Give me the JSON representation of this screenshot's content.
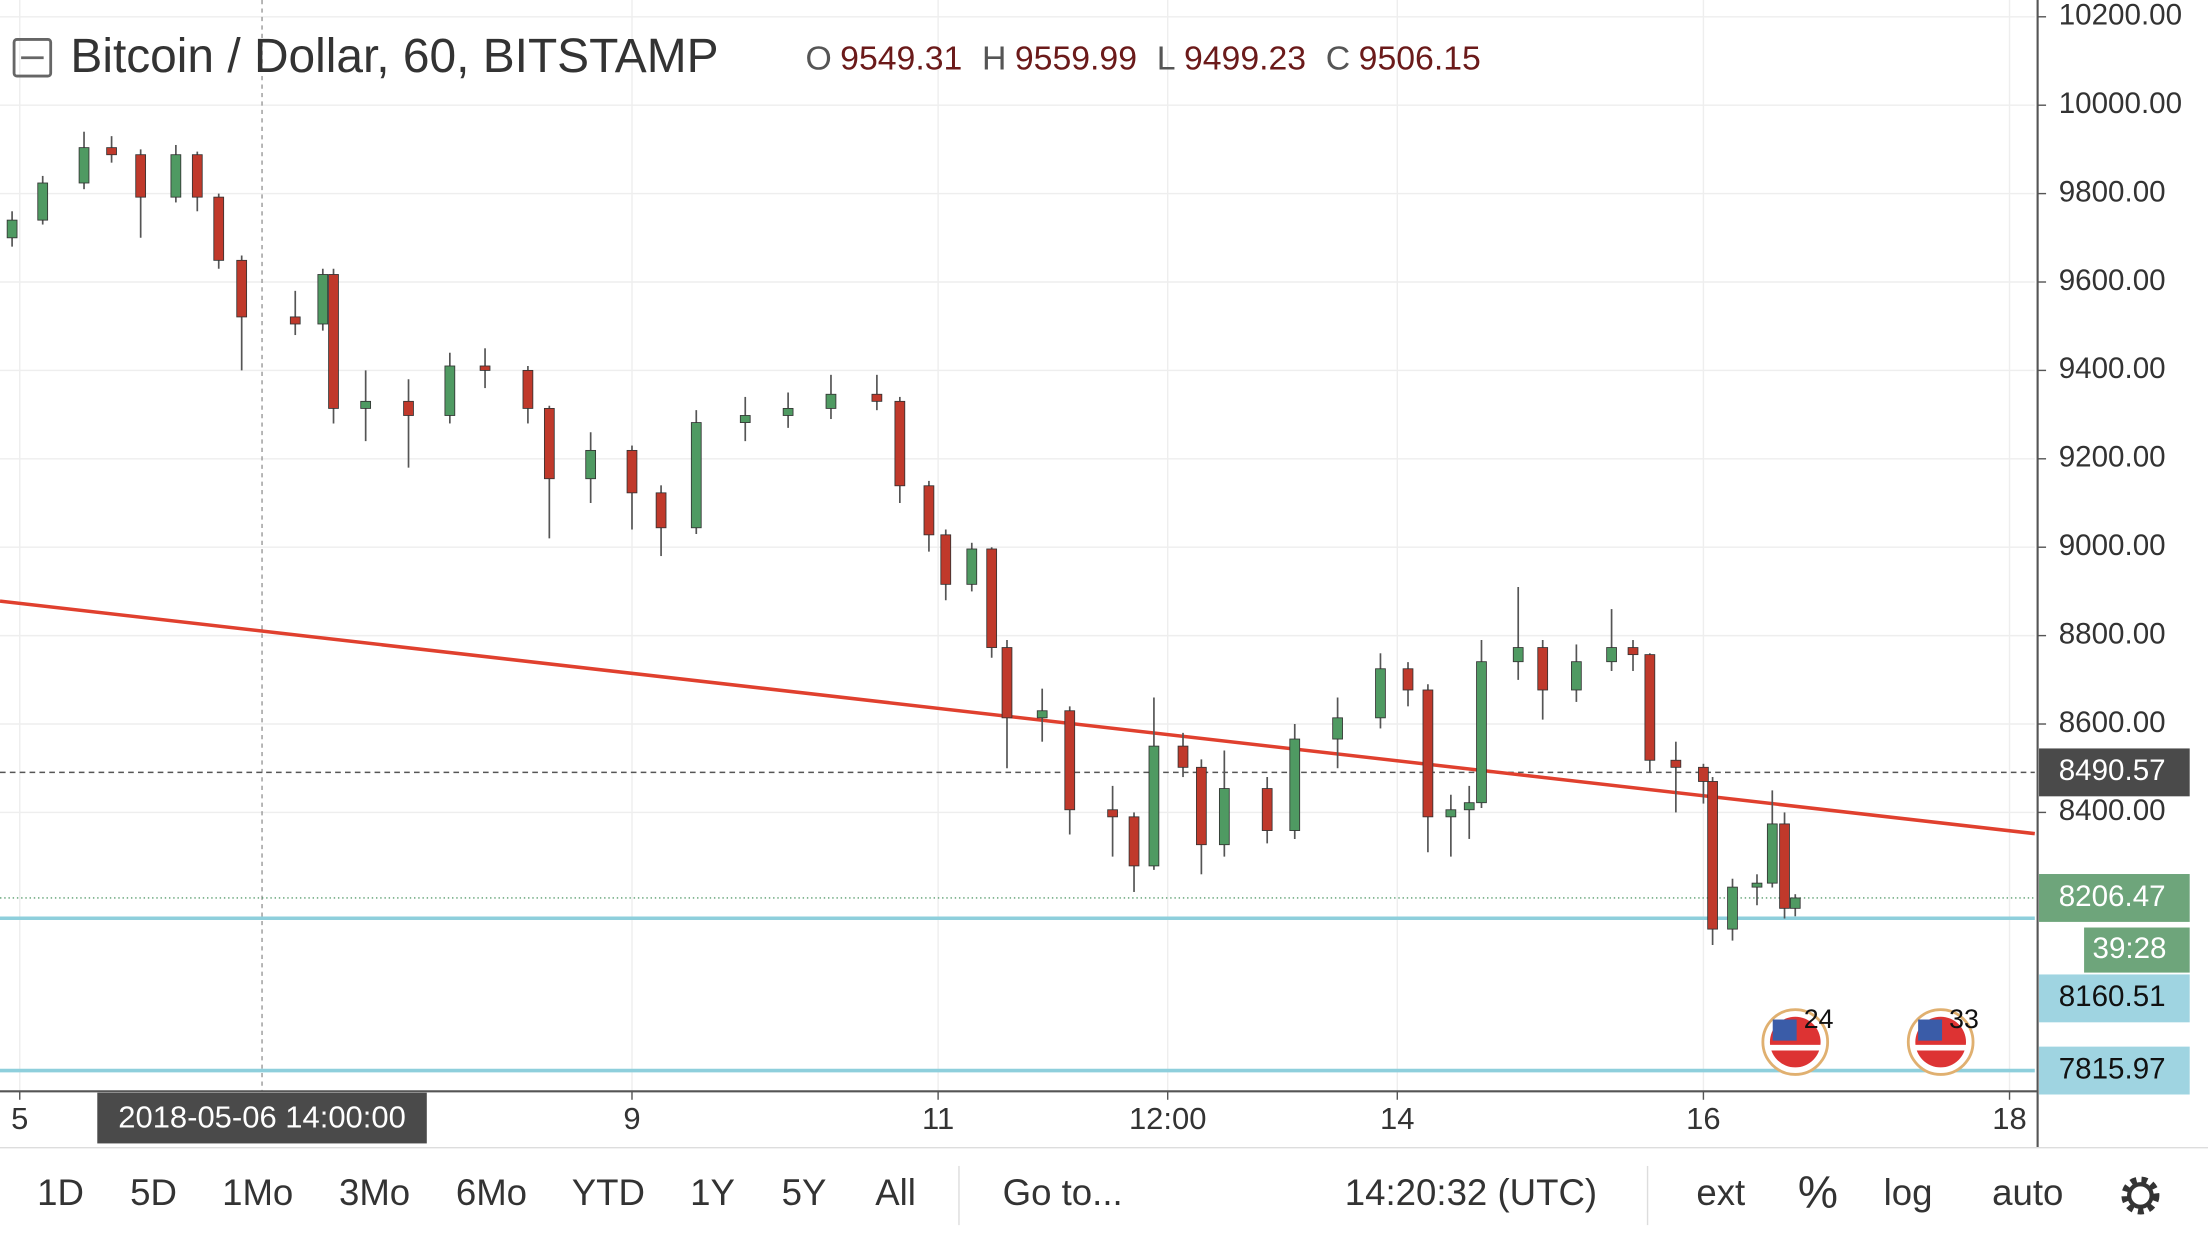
{
  "header": {
    "title": "Bitcoin / Dollar, 60, BITSTAMP",
    "ohlc": [
      {
        "label": "O",
        "value": "9549.31"
      },
      {
        "label": "H",
        "value": "9559.99"
      },
      {
        "label": "L",
        "value": "9499.23"
      },
      {
        "label": "C",
        "value": "9506.15"
      }
    ]
  },
  "toolbar": {
    "ranges": [
      "1D",
      "5D",
      "1Mo",
      "3Mo",
      "6Mo",
      "YTD",
      "1Y",
      "5Y",
      "All"
    ],
    "goto": "Go to...",
    "clock": "14:20:32 (UTC)",
    "options": [
      "ext",
      "%",
      "log",
      "auto"
    ]
  },
  "chart_data": {
    "type": "candlestick",
    "up_color": "#4f9a62",
    "down_color": "#c0392b",
    "grid": true,
    "x": [
      4.95,
      5.15,
      5.42,
      5.6,
      5.79,
      6.02,
      6.16,
      6.3,
      6.45,
      6.8,
      6.98,
      7.05,
      7.26,
      7.54,
      7.81,
      8.04,
      8.32,
      8.46,
      8.73,
      9.0,
      9.19,
      9.42,
      9.74,
      10.02,
      10.3,
      10.6,
      10.75,
      10.94,
      11.05,
      11.22,
      11.35,
      11.45,
      11.68,
      11.86,
      12.14,
      12.28,
      12.41,
      12.6,
      12.72,
      12.87,
      13.15,
      13.33,
      13.61,
      13.89,
      14.07,
      14.2,
      14.35,
      14.47,
      14.55,
      14.79,
      14.95,
      15.17,
      15.4,
      15.54,
      15.65,
      15.82,
      16.0,
      16.06,
      16.19,
      16.35,
      16.45,
      16.53,
      16.6
    ],
    "open": [
      9700,
      9740,
      9824,
      9904,
      9888,
      9792,
      9888,
      9792,
      9649,
      9521,
      9505,
      9617,
      9314,
      9330,
      9298,
      9410,
      9400,
      9314,
      9155,
      9219,
      9123,
      9044,
      9282,
      9298,
      9314,
      9346,
      9330,
      9139,
      9028,
      8916,
      8996,
      8773,
      8614,
      8630,
      8406,
      8390,
      8279,
      8550,
      8502,
      8327,
      8454,
      8359,
      8566,
      8614,
      8725,
      8677,
      8390,
      8406,
      8422,
      8741,
      8773,
      8677,
      8741,
      8773,
      8757,
      8518,
      8502,
      8470,
      8136,
      8231,
      8240,
      8374,
      8183
    ],
    "high": [
      9760,
      9840,
      9940,
      9930,
      9900,
      9910,
      9895,
      9800,
      9660,
      9580,
      9630,
      9630,
      9400,
      9380,
      9440,
      9450,
      9410,
      9320,
      9260,
      9230,
      9140,
      9310,
      9340,
      9350,
      9390,
      9390,
      9340,
      9150,
      9040,
      9010,
      9000,
      8790,
      8680,
      8640,
      8460,
      8400,
      8660,
      8580,
      8520,
      8540,
      8480,
      8600,
      8660,
      8760,
      8740,
      8690,
      8440,
      8460,
      8790,
      8910,
      8790,
      8780,
      8860,
      8790,
      8760,
      8560,
      8510,
      8480,
      8250,
      8260,
      8450,
      8400,
      8215
    ],
    "low": [
      9680,
      9730,
      9810,
      9870,
      9700,
      9780,
      9760,
      9630,
      9400,
      9480,
      9490,
      9280,
      9240,
      9180,
      9280,
      9360,
      9280,
      9020,
      9100,
      9040,
      8980,
      9030,
      9240,
      9270,
      9290,
      9310,
      9100,
      8990,
      8880,
      8900,
      8750,
      8500,
      8560,
      8350,
      8300,
      8220,
      8270,
      8480,
      8260,
      8300,
      8330,
      8340,
      8500,
      8590,
      8640,
      8310,
      8300,
      8340,
      8410,
      8700,
      8610,
      8650,
      8720,
      8720,
      8490,
      8400,
      8420,
      8100,
      8110,
      8190,
      8230,
      8160,
      8165
    ],
    "close": [
      9740,
      9824,
      9904,
      9888,
      9792,
      9888,
      9792,
      9649,
      9521,
      9505,
      9617,
      9314,
      9330,
      9298,
      9410,
      9400,
      9314,
      9155,
      9219,
      9123,
      9044,
      9282,
      9298,
      9314,
      9346,
      9330,
      9139,
      9028,
      8916,
      8996,
      8773,
      8614,
      8630,
      8406,
      8390,
      8279,
      8550,
      8502,
      8327,
      8454,
      8359,
      8566,
      8614,
      8725,
      8677,
      8390,
      8406,
      8422,
      8741,
      8773,
      8677,
      8741,
      8773,
      8757,
      8518,
      8502,
      8470,
      8136,
      8231,
      8240,
      8374,
      8183,
      8206.47
    ],
    "xlim": [
      4.871,
      18.165
    ],
    "ylim": [
      7769,
      10238
    ],
    "xticks": [
      5,
      9,
      11,
      {
        "value": 12.5,
        "label": "12:00"
      },
      14,
      16,
      18
    ],
    "yticks": [
      {
        "value": 8400,
        "label": "8400.00"
      },
      {
        "value": 8600,
        "label": "8600.00"
      },
      {
        "value": 8800,
        "label": "8800.00"
      },
      {
        "value": 9000,
        "label": "9000.00"
      },
      {
        "value": 9200,
        "label": "9200.00"
      },
      {
        "value": 9400,
        "label": "9400.00"
      },
      {
        "value": 9600,
        "label": "9600.00"
      },
      {
        "value": 9800,
        "label": "9800.00"
      },
      {
        "value": 10000,
        "label": "10000.00"
      },
      {
        "value": 10200,
        "label": "10200.00"
      }
    ],
    "trendline": {
      "x": [
        4.871,
        18.165
      ],
      "y": [
        8878,
        8352
      ],
      "color": "#e0402e"
    },
    "levels": [
      {
        "value": 8490.57,
        "color": "#555555",
        "style": "dashed"
      },
      {
        "value": 8206.47,
        "color": "#5a9e6f",
        "style": "dotted",
        "countdown": "39:28"
      },
      {
        "value": 8160.51,
        "color": "#8ecfdc",
        "style": "solid"
      },
      {
        "value": 7815.97,
        "color": "#8ecfdc",
        "style": "solid"
      }
    ],
    "crosshair": {
      "x": 6.583,
      "label": "2018-05-06 14:00:00"
    },
    "events": [
      {
        "x": 16.6,
        "label": "24"
      },
      {
        "x": 17.55,
        "label": "33"
      }
    ]
  }
}
